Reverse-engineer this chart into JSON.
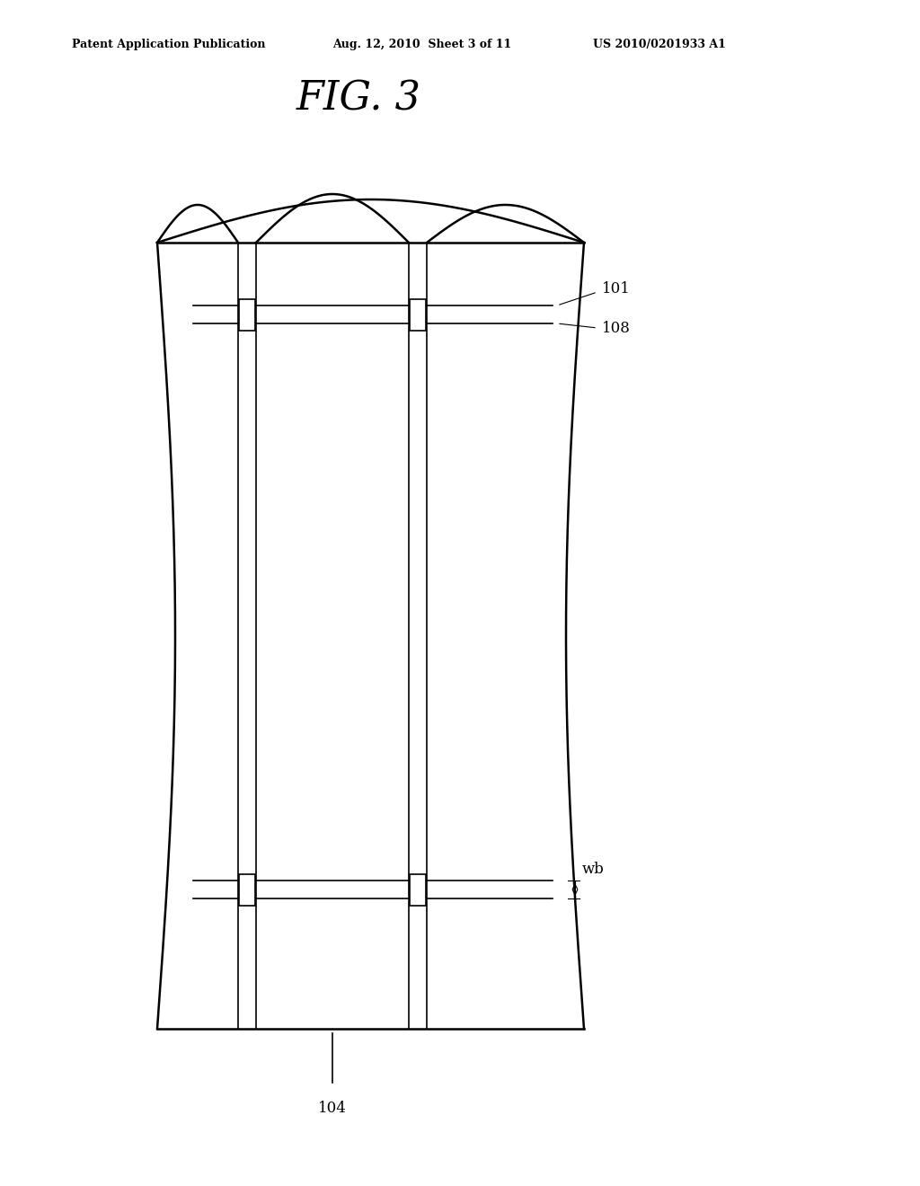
{
  "bg_color": "#ffffff",
  "line_color": "#000000",
  "fig_title": "FIG. 3",
  "header_left": "Patent Application Publication",
  "header_mid": "Aug. 12, 2010  Sheet 3 of 11",
  "header_right": "US 2010/0201933 A1",
  "label_101": "101",
  "label_108": "108",
  "label_104": "104",
  "label_wb": "wb"
}
